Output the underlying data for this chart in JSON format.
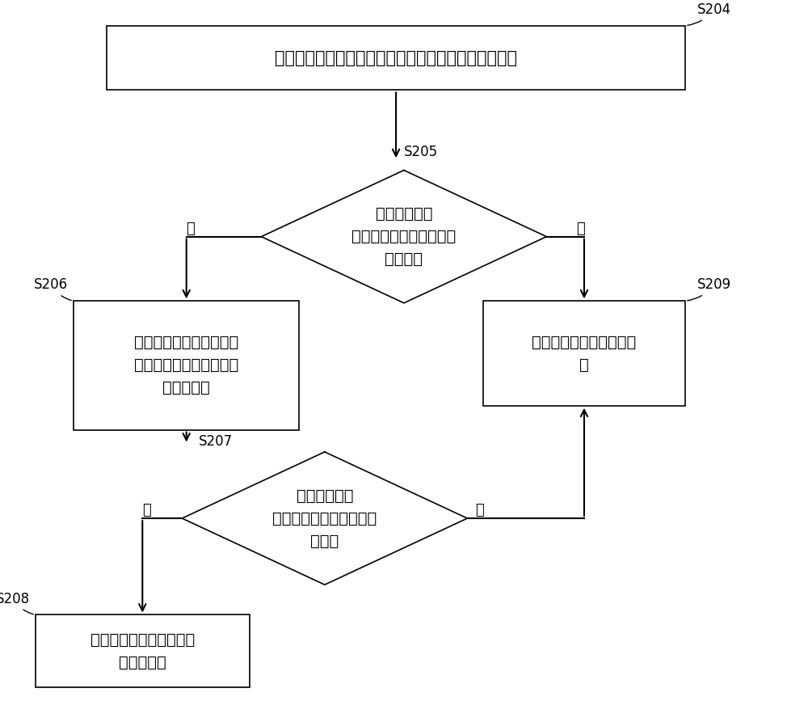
{
  "bg_color": "#ffffff",
  "font_size": 14,
  "label_font_size": 13,
  "step_font_size": 12,
  "yes_label": "是",
  "no_label": "否",
  "s204_text": "获取风机运行在目标频率下，公共烟道出口的目标参数",
  "s205_text": "判断目标参数\n是否小于目标参数对应的\n额定参数",
  "s206_text": "控制风机的频率系数增加\n预设系数值，得到更新后\n的频率系数",
  "s209_text": "维持风机运行在目标频率\n下",
  "s207_text": "判断更新后的\n频率系数是否小于预设频\n率阈值",
  "s208_text": "基于更新后的频率系数更\n新目标频率"
}
